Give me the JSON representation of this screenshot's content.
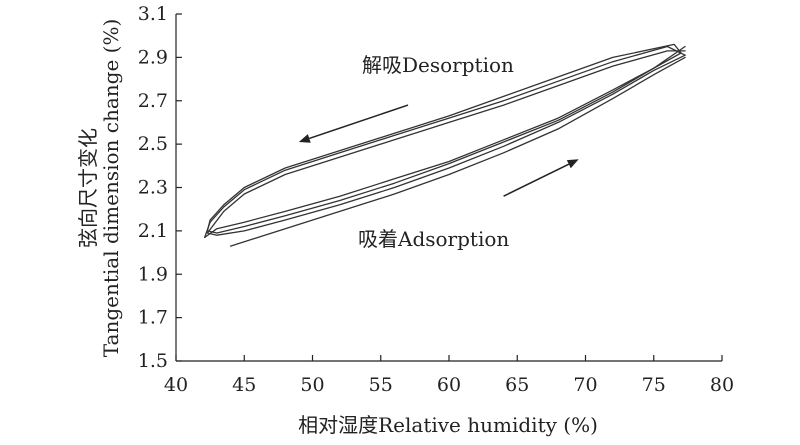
{
  "chart_data": {
    "type": "line",
    "title": "",
    "xlabel": "相对湿度Relative humidity (%)",
    "ylabel_cn": "弦向尺寸变化",
    "ylabel_en": "Tangential dimension change (%)",
    "xlim": [
      40,
      80
    ],
    "ylim": [
      1.5,
      3.1
    ],
    "x_ticks": [
      "40",
      "45",
      "50",
      "55",
      "60",
      "65",
      "70",
      "75",
      "80"
    ],
    "y_ticks": [
      "1.5",
      "1.7",
      "1.9",
      "2.1",
      "2.3",
      "2.5",
      "2.7",
      "2.9",
      "3.1"
    ],
    "grid": false,
    "annotations": {
      "desorption": "解吸Desorption",
      "adsorption": "吸着Adsorption"
    },
    "series": [
      {
        "x": [
          44,
          48,
          52,
          56,
          60,
          64,
          68,
          72,
          75,
          77.3
        ],
        "y": [
          2.03,
          2.11,
          2.19,
          2.27,
          2.36,
          2.46,
          2.57,
          2.71,
          2.82,
          2.9
        ]
      },
      {
        "x": [
          77.3,
          76,
          72,
          68,
          64,
          60,
          56,
          52,
          48,
          45,
          43.5,
          42.3
        ],
        "y": [
          2.93,
          2.93,
          2.86,
          2.77,
          2.68,
          2.6,
          2.52,
          2.44,
          2.36,
          2.27,
          2.19,
          2.09
        ]
      },
      {
        "x": [
          42.3,
          43,
          45,
          48,
          52,
          56,
          60,
          64,
          68,
          72,
          75,
          77.3
        ],
        "y": [
          2.09,
          2.08,
          2.1,
          2.15,
          2.22,
          2.3,
          2.39,
          2.49,
          2.6,
          2.73,
          2.84,
          2.91
        ]
      },
      {
        "x": [
          77.3,
          76,
          72,
          68,
          64,
          60,
          56,
          52,
          48,
          45,
          43.5,
          42.5,
          42.1
        ],
        "y": [
          2.91,
          2.95,
          2.88,
          2.79,
          2.7,
          2.62,
          2.54,
          2.46,
          2.38,
          2.29,
          2.21,
          2.14,
          2.07
        ]
      },
      {
        "x": [
          42.1,
          43,
          45,
          48,
          52,
          56,
          60,
          64,
          68,
          72,
          75,
          77
        ],
        "y": [
          2.07,
          2.11,
          2.14,
          2.19,
          2.26,
          2.34,
          2.42,
          2.52,
          2.62,
          2.75,
          2.85,
          2.92
        ]
      },
      {
        "x": [
          77,
          76.5,
          72,
          68,
          64,
          60,
          56,
          52,
          48,
          45,
          43.5,
          42.5,
          42.3
        ],
        "y": [
          2.92,
          2.96,
          2.9,
          2.81,
          2.72,
          2.63,
          2.55,
          2.47,
          2.39,
          2.3,
          2.22,
          2.15,
          2.1
        ]
      },
      {
        "x": [
          42.3,
          43,
          45,
          48,
          52,
          56,
          60,
          64,
          68,
          72,
          75,
          77.3
        ],
        "y": [
          2.1,
          2.09,
          2.12,
          2.17,
          2.24,
          2.32,
          2.41,
          2.51,
          2.61,
          2.74,
          2.85,
          2.95
        ]
      }
    ],
    "arrows": [
      {
        "from": [
          57,
          2.68
        ],
        "to": [
          49,
          2.51
        ]
      },
      {
        "from": [
          64,
          2.26
        ],
        "to": [
          69.5,
          2.43
        ]
      }
    ]
  }
}
